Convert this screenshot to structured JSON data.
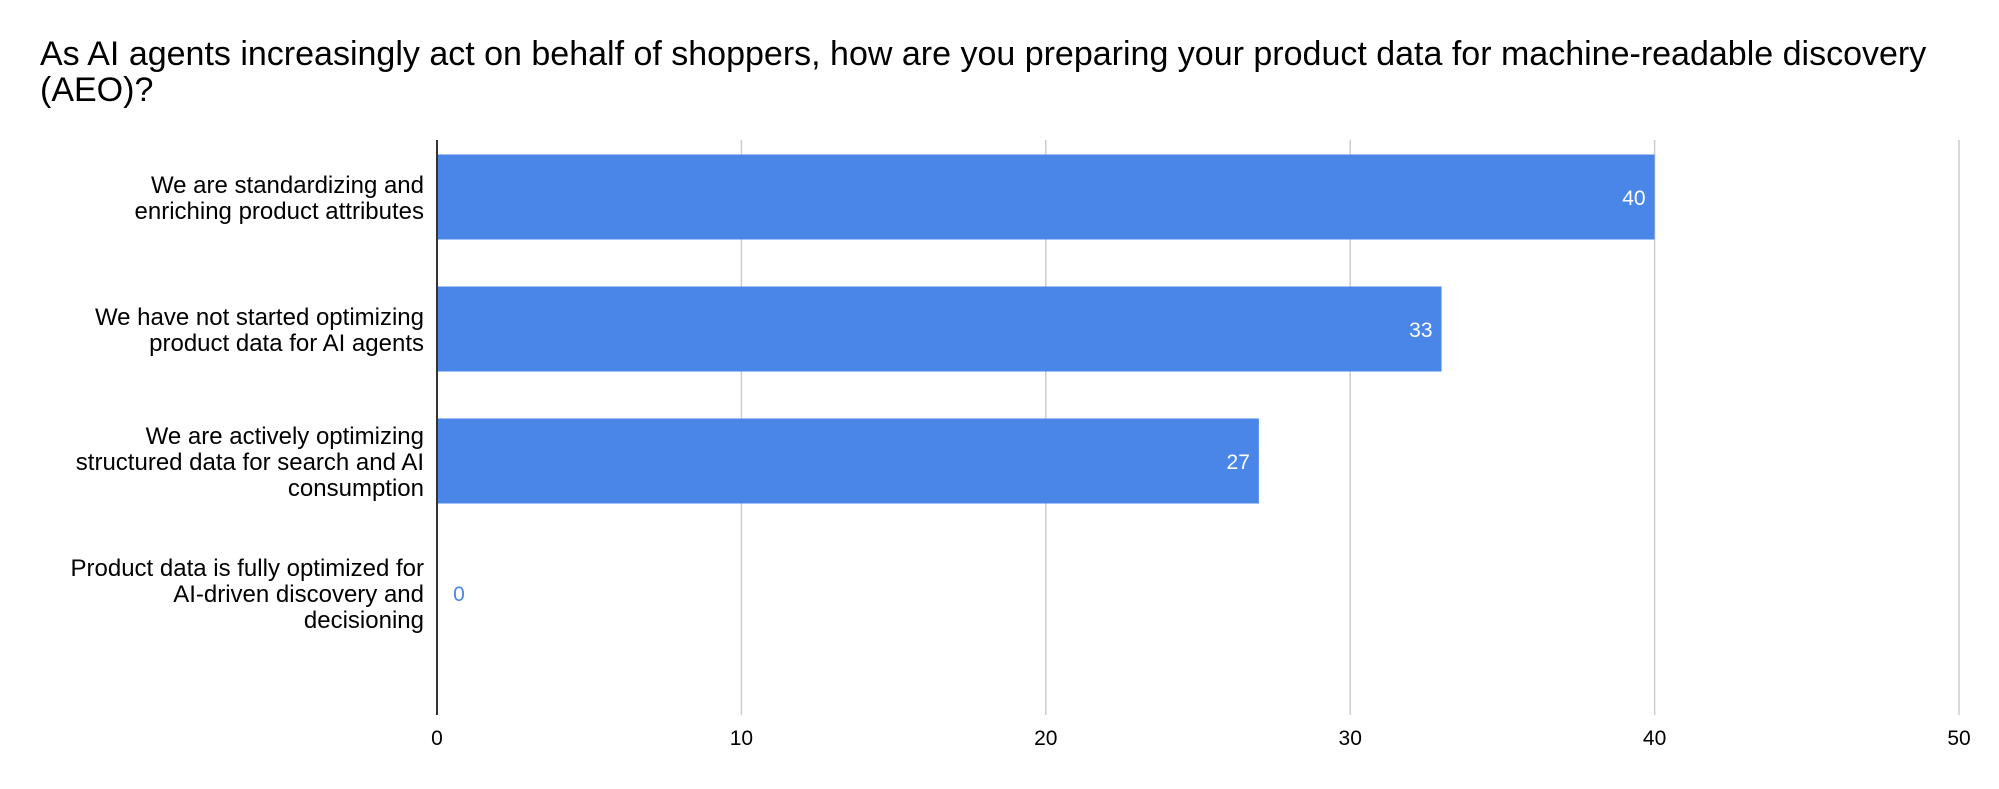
{
  "chart_data": {
    "type": "bar",
    "orientation": "horizontal",
    "title": "As AI agents increasingly act on behalf of shoppers, how are you preparing your product data for machine-readable discovery (AEO)?",
    "categories": [
      [
        "We are standardizing and",
        "enriching product attributes"
      ],
      [
        "We have not started optimizing",
        "product data for AI agents"
      ],
      [
        "We are actively optimizing",
        "structured data for search and AI",
        "consumption"
      ],
      [
        "Product data is fully optimized for",
        "AI-driven discovery and",
        "decisioning"
      ]
    ],
    "values": [
      40,
      33,
      27,
      0
    ],
    "value_labels": [
      "40",
      "33",
      "27",
      "0"
    ],
    "xlim": [
      0,
      50
    ],
    "xticks": [
      0,
      10,
      20,
      30,
      40,
      50
    ],
    "xtick_labels": [
      "0",
      "10",
      "20",
      "30",
      "40",
      "50"
    ],
    "grid": true,
    "legend": "none",
    "bar_color": "#4a86e8",
    "grid_color": "#cccccc",
    "axis_color": "#333333"
  }
}
